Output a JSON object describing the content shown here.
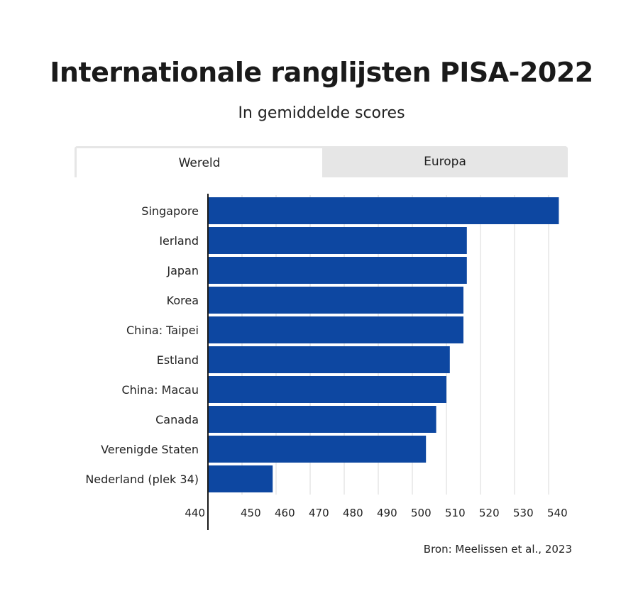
{
  "header": {
    "title": "Internationale ranglijsten PISA-2022",
    "subtitle": "In gemiddelde scores"
  },
  "tabs": [
    {
      "label": "Wereld",
      "active": true
    },
    {
      "label": "Europa",
      "active": false
    }
  ],
  "footer": {
    "source": "Bron: Meelissen et al., 2023"
  },
  "colors": {
    "bar": "#0d47a1",
    "grid": "#d9d9d9",
    "axis": "#1a1a1a"
  },
  "chart_data": {
    "type": "bar",
    "orientation": "horizontal",
    "title": "Internationale ranglijsten PISA-2022",
    "subtitle": "In gemiddelde scores",
    "categories": [
      "Singapore",
      "Ierland",
      "Japan",
      "Korea",
      "China: Taipei",
      "Estland",
      "China: Macau",
      "Canada",
      "Verenigde Staten",
      "Nederland (plek 34)"
    ],
    "values": [
      543,
      516,
      516,
      515,
      515,
      511,
      510,
      507,
      504,
      459
    ],
    "xlim": [
      440,
      545
    ],
    "xticks": [
      440,
      450,
      460,
      470,
      480,
      490,
      500,
      510,
      520,
      530,
      540
    ],
    "grid": true,
    "xlabel": "",
    "ylabel": ""
  }
}
